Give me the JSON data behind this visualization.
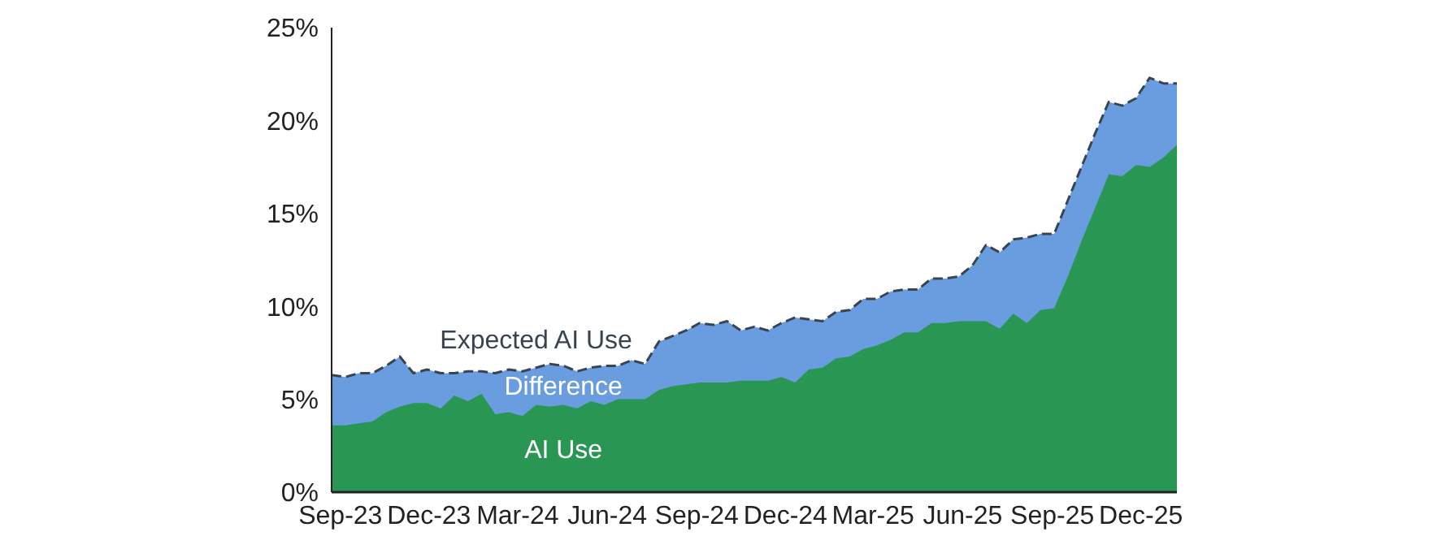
{
  "chart_data": {
    "type": "area",
    "x": [
      "2023-08-23",
      "2023-09-06",
      "2023-09-20",
      "2023-10-04",
      "2023-10-18",
      "2023-11-01",
      "2023-11-15",
      "2023-11-29",
      "2023-12-13",
      "2023-12-27",
      "2024-01-10",
      "2024-01-24",
      "2024-02-07",
      "2024-02-21",
      "2024-03-06",
      "2024-03-20",
      "2024-04-03",
      "2024-04-17",
      "2024-05-01",
      "2024-05-15",
      "2024-05-29",
      "2024-06-12",
      "2024-06-26",
      "2024-07-10",
      "2024-07-24",
      "2024-08-07",
      "2024-08-21",
      "2024-09-04",
      "2024-09-18",
      "2024-10-02",
      "2024-10-16",
      "2024-10-30",
      "2024-11-13",
      "2024-11-27",
      "2024-12-11",
      "2024-12-25",
      "2025-01-08",
      "2025-01-22",
      "2025-02-05",
      "2025-02-19",
      "2025-03-05",
      "2025-03-19",
      "2025-04-02",
      "2025-04-16",
      "2025-04-30",
      "2025-05-14",
      "2025-05-28",
      "2025-06-11",
      "2025-06-25",
      "2025-07-09",
      "2025-07-23",
      "2025-08-06",
      "2025-08-20",
      "2025-09-03",
      "2025-09-17",
      "2025-10-01",
      "2025-10-15",
      "2025-10-29",
      "2025-11-12",
      "2025-11-26",
      "2025-12-10",
      "2025-12-24",
      "2026-01-07"
    ],
    "series": [
      {
        "name": "Expected AI Use",
        "color": "#6a9de0",
        "line_style": "dashed",
        "values": [
          6.3,
          6.2,
          6.4,
          6.4,
          6.8,
          7.3,
          6.4,
          6.6,
          6.4,
          6.4,
          6.5,
          6.5,
          6.4,
          6.6,
          6.5,
          6.7,
          6.9,
          6.8,
          6.5,
          6.7,
          6.8,
          6.8,
          7.1,
          6.9,
          8.1,
          8.4,
          8.7,
          9.1,
          9.0,
          9.2,
          8.7,
          8.9,
          8.7,
          9.1,
          9.4,
          9.3,
          9.2,
          9.7,
          9.8,
          10.4,
          10.4,
          10.8,
          10.9,
          10.9,
          11.5,
          11.5,
          11.6,
          12.2,
          13.3,
          12.9,
          13.6,
          13.7,
          13.9,
          13.9,
          15.7,
          17.5,
          19.3,
          21.0,
          20.8,
          21.2,
          22.3,
          22.0,
          22.0
        ]
      },
      {
        "name": "AI Use",
        "color": "#2a9653",
        "values": [
          3.6,
          3.6,
          3.7,
          3.8,
          4.3,
          4.6,
          4.8,
          4.8,
          4.5,
          5.2,
          4.9,
          5.3,
          4.2,
          4.3,
          4.1,
          4.7,
          4.6,
          4.7,
          4.5,
          4.9,
          4.7,
          5.0,
          5.0,
          5.0,
          5.5,
          5.7,
          5.8,
          5.9,
          5.9,
          5.9,
          6.0,
          6.0,
          6.0,
          6.2,
          5.9,
          6.6,
          6.7,
          7.2,
          7.3,
          7.7,
          7.9,
          8.2,
          8.6,
          8.6,
          9.1,
          9.1,
          9.2,
          9.2,
          9.2,
          8.8,
          9.6,
          9.1,
          9.8,
          9.9,
          11.6,
          13.5,
          15.3,
          17.1,
          17.0,
          17.6,
          17.5,
          18.0,
          18.7
        ]
      }
    ],
    "annotations": [
      "Difference"
    ],
    "xlim": [
      "2023-08-23",
      "2026-01-07"
    ],
    "xticks": [
      {
        "value": "2023-09-01",
        "label": "Sep-23"
      },
      {
        "value": "2023-12-01",
        "label": "Dec-23"
      },
      {
        "value": "2024-03-01",
        "label": "Mar-24"
      },
      {
        "value": "2024-06-01",
        "label": "Jun-24"
      },
      {
        "value": "2024-09-01",
        "label": "Sep-24"
      },
      {
        "value": "2024-12-01",
        "label": "Dec-24"
      },
      {
        "value": "2025-03-01",
        "label": "Mar-25"
      },
      {
        "value": "2025-06-01",
        "label": "Jun-25"
      },
      {
        "value": "2025-09-01",
        "label": "Sep-25"
      },
      {
        "value": "2025-12-01",
        "label": "Dec-25"
      }
    ],
    "ylim": [
      0,
      25
    ],
    "yticks": [
      {
        "value": 0,
        "label": "0%"
      },
      {
        "value": 5,
        "label": "5%"
      },
      {
        "value": 10,
        "label": "10%"
      },
      {
        "value": 15,
        "label": "15%"
      },
      {
        "value": 20,
        "label": "20%"
      },
      {
        "value": 25,
        "label": "25%"
      }
    ],
    "grid": false,
    "legend": false
  }
}
